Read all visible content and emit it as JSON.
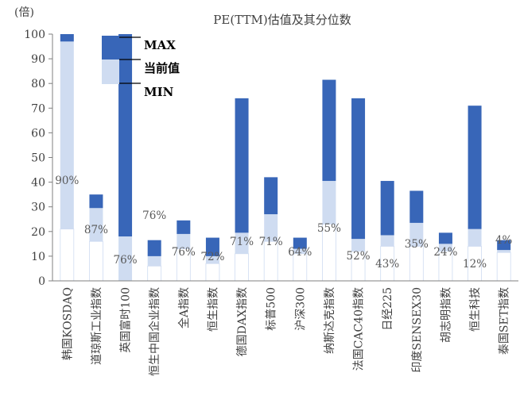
{
  "chart_data": {
    "type": "bar",
    "title": "PE(TTM)估值及其分位数",
    "ylabel": "(倍)",
    "ylim": [
      0,
      100
    ],
    "yticks": [
      "0",
      "10",
      "20",
      "30",
      "40",
      "50",
      "60",
      "70",
      "80",
      "90",
      "100"
    ],
    "categories": [
      "韩国KOSDAQ",
      "道琼斯工业指数",
      "英国富时100",
      "恒生中国企业指数",
      "全A指数",
      "恒生指数",
      "德国DAX指数",
      "标普500",
      "沪深300",
      "纳斯达克指数",
      "法国CAC40指数",
      "日经225",
      "印度SENSEX30",
      "胡志明指数",
      "恒生科技",
      "泰国SET指数"
    ],
    "series": [
      {
        "name": "MIN",
        "values": [
          21,
          16,
          0,
          6,
          13,
          7,
          11,
          16,
          11,
          23,
          12,
          14,
          14,
          12,
          14,
          11.5
        ]
      },
      {
        "name": "当前值",
        "values": [
          97,
          29.5,
          18,
          10,
          19,
          10,
          19.5,
          27,
          13,
          40.5,
          17,
          18.5,
          23.5,
          15,
          21,
          12.5
        ]
      },
      {
        "name": "MAX",
        "values": [
          100,
          35,
          100,
          16.5,
          24.5,
          17.5,
          74,
          42,
          17.5,
          81.5,
          74,
          40.5,
          36.5,
          19.5,
          71,
          16.5
        ]
      }
    ],
    "percentile_labels": [
      "90%",
      "87%",
      "76%",
      "76%",
      "76%",
      "72%",
      "71%",
      "71%",
      "64%",
      "55%",
      "52%",
      "43%",
      "35%",
      "24%",
      "12%",
      "4%"
    ],
    "legend": {
      "position": "top-left",
      "items": [
        "MAX",
        "当前值",
        "MIN"
      ]
    },
    "colors": {
      "upper": "#3866b8",
      "lower": "#cfdcf1",
      "border": "#cfdcf1",
      "axis": "#7f7f7f",
      "text": "#404040"
    },
    "grid": false
  }
}
